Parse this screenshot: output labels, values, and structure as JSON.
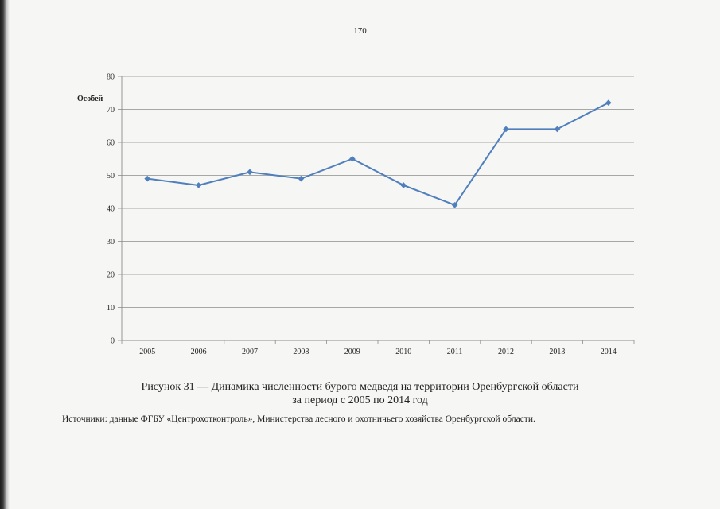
{
  "page": {
    "number": "170",
    "caption_line1": "Рисунок 31 — Динамика численности бурого медведя на территории Оренбургской области",
    "caption_line2": "за период с 2005 по 2014 год",
    "source": "Источники: данные ФГБУ «Центрохотконтроль», Министерства лесного и охотничьего хозяйства Оренбургской области."
  },
  "chart_data": {
    "type": "line",
    "title": "",
    "xlabel": "",
    "ylabel": "Особей",
    "categories": [
      "2005",
      "2006",
      "2007",
      "2008",
      "2009",
      "2010",
      "2011",
      "2012",
      "2013",
      "2014"
    ],
    "series": [
      {
        "values": [
          49,
          47,
          51,
          49,
          55,
          47,
          41,
          64,
          64,
          72
        ]
      }
    ],
    "ylim": [
      0,
      80
    ],
    "yticks": [
      0,
      10,
      20,
      30,
      40,
      50,
      60,
      70,
      80
    ],
    "grid": true,
    "legend": "none",
    "line_color": "#4f7fbd",
    "grid_color": "#8c8c8c"
  }
}
